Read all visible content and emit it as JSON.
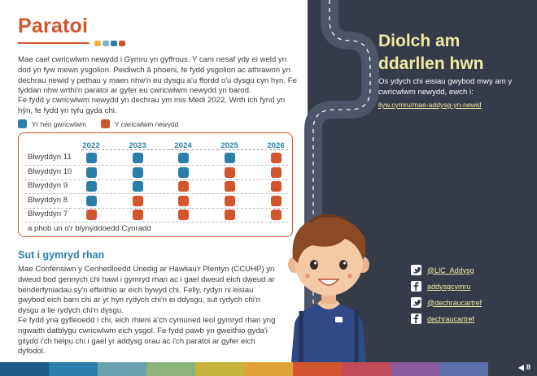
{
  "page": {
    "title": "Paratoi",
    "intro_paragraph": "Mae cael cwricwlwm newydd i Gymru yn gyffrous. Y cam nesaf ydy ei weld yn dod yn fyw mewn ysgolion. Peidiwch â phoeni, fe fydd ysgolion ac athrawon yn dechrau newid y pethau y maen nhw'n eu dysgu a'u ffordd o'u dysgu cyn hyn. Fe fyddan nhw wrthi'n paratoi ar gyfer eu cwricwlwm newydd yn barod.",
    "start_paragraph": "Fe fydd y cwricwlwm newydd yn dechrau ym mis Medi 2022. Wrth ich fynd yn hŷn, fe fydd yn tyfu gyda chi.",
    "legend": {
      "old": "Yr hen gwricwlwm",
      "new": "Y cwricwlwm newydd"
    },
    "table": {
      "years": [
        "2022",
        "2023",
        "2024",
        "2025",
        "2026"
      ],
      "rows": [
        {
          "label": "Blwyddyn 11",
          "cells": [
            "old",
            "old",
            "old",
            "old",
            "new"
          ]
        },
        {
          "label": "Blwyddyn 10",
          "cells": [
            "old",
            "old",
            "old",
            "new",
            "new"
          ]
        },
        {
          "label": "Blwyddyn 9",
          "cells": [
            "old",
            "old",
            "new",
            "new",
            "new"
          ]
        },
        {
          "label": "Blwyddyn 8",
          "cells": [
            "old",
            "new",
            "new",
            "new",
            "new"
          ]
        },
        {
          "label": "Blwyddyn 7",
          "cells": [
            "new",
            "new",
            "new",
            "new",
            "new"
          ]
        }
      ],
      "footnote": "a phob un o'r blynyddoedd Cynradd"
    },
    "subheading": "Sut i gymryd rhan",
    "rights_paragraph": "Mae Confensiwn y Cenhedloedd Unedig ar Hawliau'r Plentyn (CCUHP) yn dweud bod gennych chi hawl i gymryd rhan ac i gael dweud eich dweud ar benderfyniadau sy'n effeithio ar eich bywyd chi. Felly, rydyn ni eisiau gwybod eich barn chi ar yr hyn rydych chi'n ei ddysgu, sut rydych chi'n dysgu a lle rydych chi'n dysgu.",
    "chance_paragraph": "Fe fydd yna gyfleoedd i chi, eich rhieni a'ch cymuned leol gymryd rhan yng ngwaith datblygu cwricwlwm eich ysgol. Fe fydd pawb yn gweithio gyda'i gilydd i'ch helpu chi i gael yr addysg orau ac i'ch paratoi ar gyfer eich dyfodol."
  },
  "sidebar": {
    "thanks_line1": "Diolch am",
    "thanks_line2": "ddarllen hwn",
    "info": "Os ydych chi eisiau gwybod mwy am y cwricwlwm newydd, ewch i:",
    "link": "llyw.cymru/mae-addysg-yn-newid",
    "social": [
      {
        "icon": "twitter-icon",
        "label": "@LlC_Addysg"
      },
      {
        "icon": "facebook-icon",
        "label": "addysgcymru"
      },
      {
        "icon": "twitter-icon",
        "label": "@dechraucartref"
      },
      {
        "icon": "facebook-icon",
        "label": "dechraucartref"
      }
    ]
  },
  "footer": {
    "page_number": "8",
    "arrow_icon": "arrow-left-icon"
  },
  "colors": {
    "accent_orange": "#d2552d",
    "old_curriculum": "#2b7ea8",
    "new_curriculum": "#d2552d",
    "sidebar_bg": "#353b49",
    "highlight_text": "#f2e9a6",
    "title_dots": [
      "#f0b43c",
      "#7ab6c7",
      "#2b7ea8",
      "#d2552d"
    ],
    "footer_stripe": [
      "#1f5c86",
      "#2b7ea8",
      "#6aa2b0",
      "#8bb37a",
      "#c7b23c",
      "#e2a23a",
      "#d2552d",
      "#c24b5a",
      "#8a5b9c",
      "#5b6fa8",
      "#353b49"
    ]
  }
}
